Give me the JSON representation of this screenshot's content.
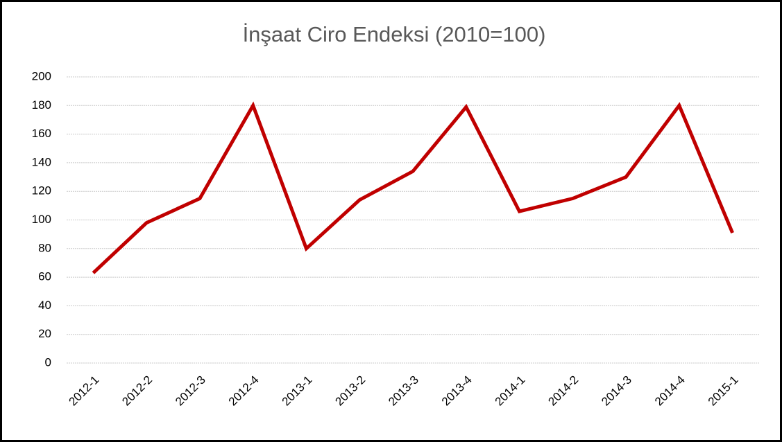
{
  "chart_data": {
    "type": "line",
    "title": "İnşaat Ciro Endeksi (2010=100)",
    "categories": [
      "2012-1",
      "2012-2",
      "2012-3",
      "2012-4",
      "2013-1",
      "2013-2",
      "2013-3",
      "2013-4",
      "2014-1",
      "2014-2",
      "2014-3",
      "2014-4",
      "2015-1"
    ],
    "series": [
      {
        "name": "İnşaat Ciro Endeksi",
        "color": "#c00000",
        "values": [
          63,
          98,
          115,
          180,
          80,
          114,
          134,
          179,
          106,
          115,
          130,
          180,
          91
        ]
      }
    ],
    "ylim": [
      0,
      200
    ],
    "yticks": [
      0,
      20,
      40,
      60,
      80,
      100,
      120,
      140,
      160,
      180,
      200
    ],
    "grid": true
  }
}
